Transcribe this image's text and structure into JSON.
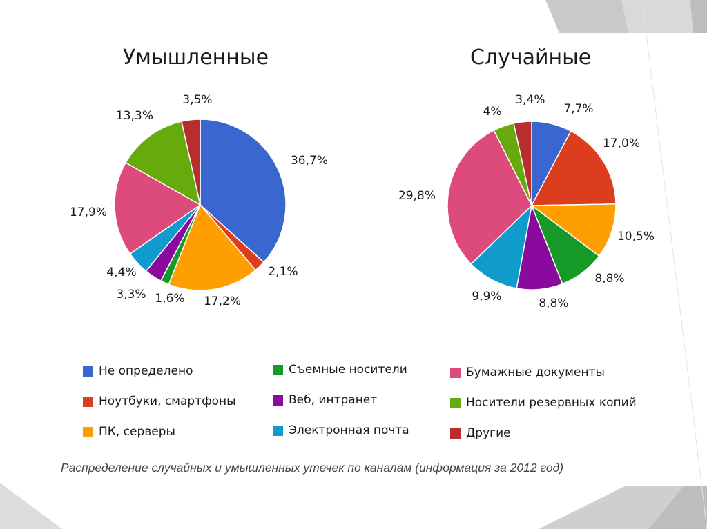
{
  "chart_data": [
    {
      "type": "pie",
      "title": "Умышленные",
      "slices": [
        {
          "category": "Не определено",
          "value": 36.7,
          "label": "36,7%"
        },
        {
          "category": "Ноутбуки, смартфоны",
          "value": 2.1,
          "label": "2,1%"
        },
        {
          "category": "ПК, серверы",
          "value": 17.2,
          "label": "17,2%"
        },
        {
          "category": "Съемные носители",
          "value": 1.6,
          "label": "1,6%"
        },
        {
          "category": "Веб, интранет",
          "value": 3.3,
          "label": "3,3%"
        },
        {
          "category": "Электронная почта",
          "value": 4.4,
          "label": "4,4%"
        },
        {
          "category": "Бумажные документы",
          "value": 17.9,
          "label": "17,9%"
        },
        {
          "category": "Носители резервных копий",
          "value": 13.3,
          "label": "13,3%"
        },
        {
          "category": "Другие",
          "value": 3.5,
          "label": "3,5%"
        }
      ]
    },
    {
      "type": "pie",
      "title": "Случайные",
      "slices": [
        {
          "category": "Не определено",
          "value": 7.7,
          "label": "7,7%"
        },
        {
          "category": "Ноутбуки, смартфоны",
          "value": 17.0,
          "label": "17,0%"
        },
        {
          "category": "ПК, серверы",
          "value": 10.5,
          "label": "10,5%"
        },
        {
          "category": "Съемные носители",
          "value": 8.8,
          "label": "8,8%"
        },
        {
          "category": "Веб, интранет",
          "value": 8.8,
          "label": "8,8%"
        },
        {
          "category": "Электронная почта",
          "value": 9.9,
          "label": "9,9%"
        },
        {
          "category": "Бумажные документы",
          "value": 29.8,
          "label": "29,8%"
        },
        {
          "category": "Носители резервных копий",
          "value": 4.0,
          "label": "4%"
        },
        {
          "category": "Другие",
          "value": 3.4,
          "label": "3,4%"
        }
      ]
    }
  ],
  "legend": [
    {
      "label": "Не определено",
      "color": "#3a66cf"
    },
    {
      "label": "Ноутбуки, смартфоны",
      "color": "#dc3d1c"
    },
    {
      "label": "ПК, серверы",
      "color": "#ff9e00"
    },
    {
      "label": "Съемные носители",
      "color": "#159a27"
    },
    {
      "label": "Веб, интранет",
      "color": "#8a0a9e"
    },
    {
      "label": "Электронная почта",
      "color": "#0f9ccd"
    },
    {
      "label": "Бумажные документы",
      "color": "#dd4a7c"
    },
    {
      "label": "Носители резервных копий",
      "color": "#66aa0e"
    },
    {
      "label": "Другие",
      "color": "#b82e2e"
    }
  ],
  "legend_placement": "bottom",
  "caption": "Распределение случайных и умышленных утечек по каналам (информация за 2012 год)"
}
